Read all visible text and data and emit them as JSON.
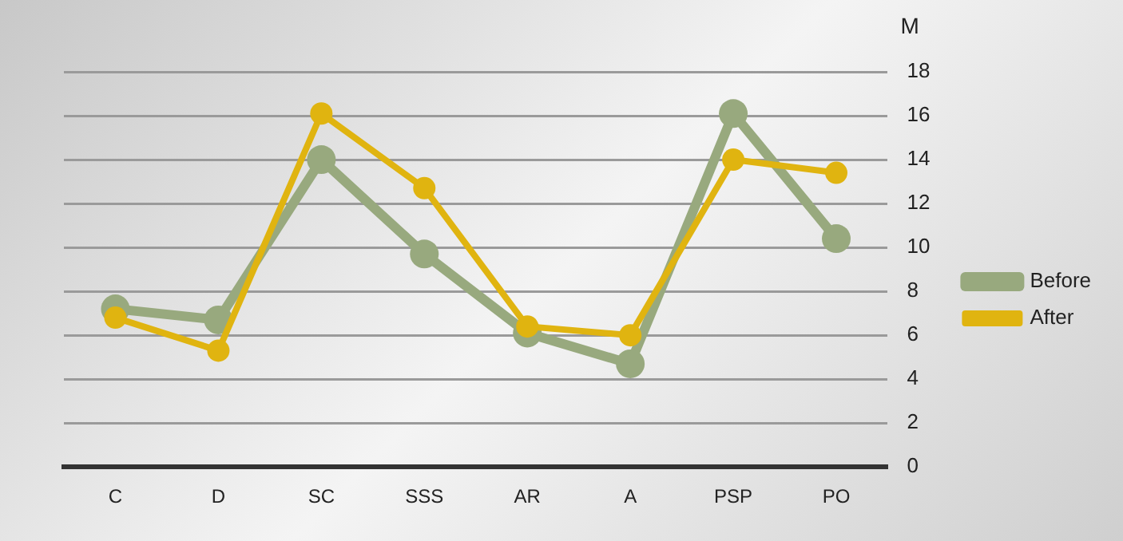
{
  "chart_data": {
    "type": "line",
    "ylabel": "M",
    "categories": [
      "C",
      "D",
      "SC",
      "SSS",
      "AR",
      "A",
      "PSP",
      "PO"
    ],
    "series": [
      {
        "name": "Before",
        "color": "#98a97e",
        "values": [
          7.2,
          6.7,
          14.0,
          9.7,
          6.1,
          4.7,
          16.1,
          10.4
        ]
      },
      {
        "name": "After",
        "color": "#e0b410",
        "values": [
          6.8,
          5.3,
          16.1,
          12.7,
          6.4,
          6.0,
          14.0,
          13.4
        ]
      }
    ],
    "ylim": [
      0,
      18
    ],
    "yticks": [
      0,
      2,
      4,
      6,
      8,
      10,
      12,
      14,
      16,
      18
    ],
    "grid": "y",
    "legend": "right",
    "marker": "circle",
    "line_style": "solid"
  }
}
